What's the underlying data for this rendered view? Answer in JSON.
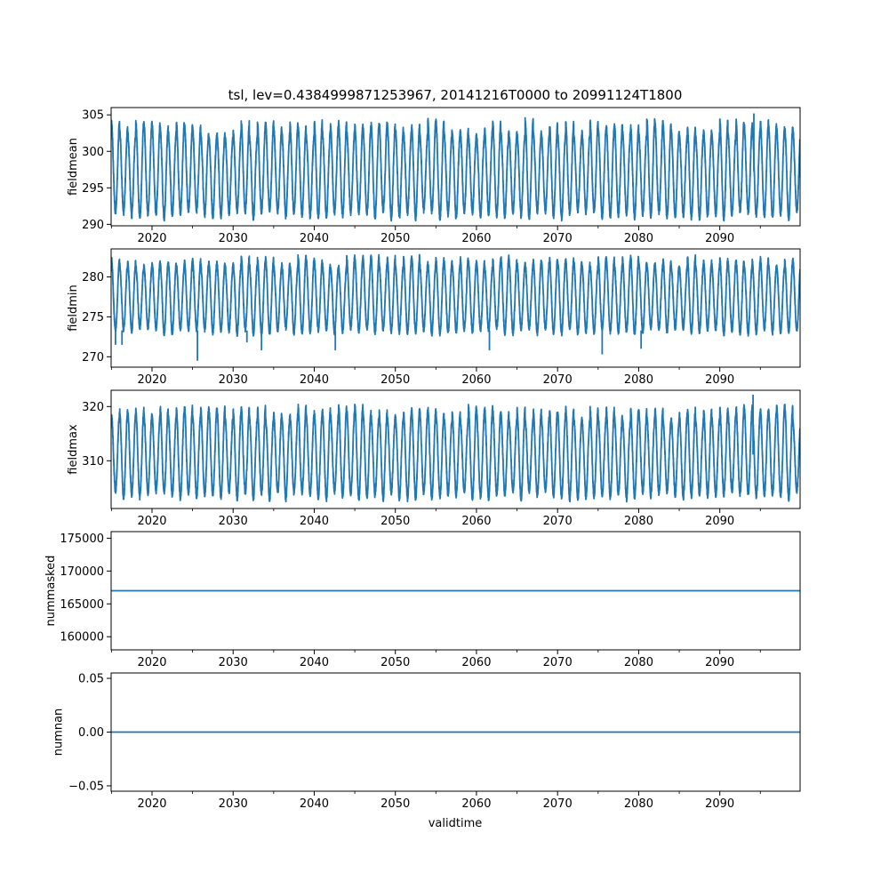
{
  "chart_data": {
    "type": "line",
    "title": "tsl, lev=0.4384999871253967, 20141216T0000 to 20991124T1800",
    "xlabel": "validtime",
    "xlim": [
      2014.96,
      2099.9
    ],
    "x_ticks": [
      "2020",
      "2030",
      "2040",
      "2050",
      "2060",
      "2070",
      "2080",
      "2090"
    ],
    "line_color": "#1f77b4",
    "panels": [
      {
        "ylabel": "fieldmean",
        "ylim": [
          289.8,
          306.0
        ],
        "y_ticks": [
          "290",
          "295",
          "300",
          "305"
        ],
        "series": {
          "kind": "seasonal",
          "summer_peak": 303.0,
          "winter_trough": 291.5,
          "peak_noise": 1.2,
          "trough_noise": 0.6,
          "highlights": [
            {
              "x": 2094.2,
              "y": 305.2
            }
          ]
        }
      },
      {
        "ylabel": "fieldmin",
        "ylim": [
          268.7,
          283.5
        ],
        "y_ticks": [
          "270",
          "275",
          "280"
        ],
        "series": {
          "kind": "seasonal",
          "summer_peak": 281.8,
          "winter_trough": 273.3,
          "peak_noise": 0.7,
          "trough_noise": 0.4,
          "dips": [
            {
              "x": 2015.5,
              "y": 271.5
            },
            {
              "x": 2016.3,
              "y": 271.5
            },
            {
              "x": 2025.6,
              "y": 269.5
            },
            {
              "x": 2031.7,
              "y": 271.8
            },
            {
              "x": 2033.5,
              "y": 270.8
            },
            {
              "x": 2042.6,
              "y": 270.8
            },
            {
              "x": 2061.6,
              "y": 270.8
            },
            {
              "x": 2075.5,
              "y": 270.3
            },
            {
              "x": 2080.3,
              "y": 271.0
            }
          ]
        }
      },
      {
        "ylabel": "fieldmax",
        "ylim": [
          301.2,
          323.0
        ],
        "y_ticks": [
          "310",
          "320"
        ],
        "series": {
          "kind": "seasonal",
          "summer_peak": 318.5,
          "winter_trough": 303.8,
          "peak_noise": 1.5,
          "trough_noise": 0.8,
          "highlights": [
            {
              "x": 2094.1,
              "y": 322.2
            }
          ]
        }
      },
      {
        "ylabel": "nummasked",
        "ylim": [
          158000,
          176000
        ],
        "y_ticks": [
          "160000",
          "165000",
          "170000",
          "175000"
        ],
        "series": {
          "kind": "constant",
          "value": 167000
        }
      },
      {
        "ylabel": "numnan",
        "ylim": [
          -0.055,
          0.055
        ],
        "y_ticks": [
          "−0.05",
          "0.00",
          "0.05"
        ],
        "series": {
          "kind": "constant",
          "value": 0.0
        }
      }
    ]
  }
}
